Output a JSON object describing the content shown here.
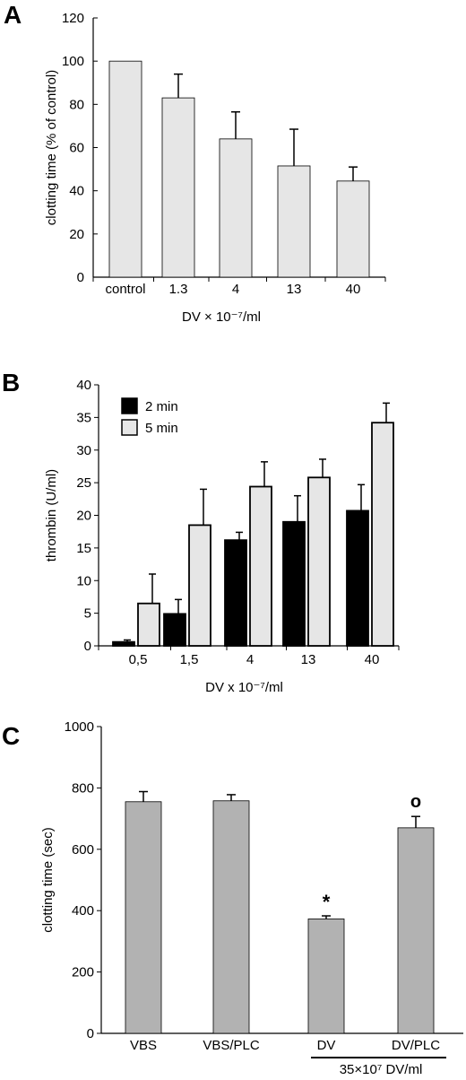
{
  "chart_data": [
    {
      "panel": "A",
      "type": "bar",
      "categories": [
        "control",
        "1.3",
        "4",
        "13",
        "40"
      ],
      "series": [
        {
          "values": [
            100,
            83,
            64,
            51.5,
            44.5
          ],
          "errors": [
            0,
            11,
            12.5,
            17,
            6.5
          ],
          "color": "#e6e6e6"
        }
      ],
      "xlabel": "DV × 10⁻⁷/ml",
      "ylabel": "clotting time (% of control)",
      "ylim": [
        0,
        120
      ],
      "yticks": [
        "0",
        "20",
        "40",
        "60",
        "80",
        "100",
        "120"
      ],
      "grid": false
    },
    {
      "panel": "B",
      "type": "bar",
      "categories": [
        "0,5",
        "1,5",
        "4",
        "13",
        "40"
      ],
      "series": [
        {
          "name": "2 min",
          "values": [
            0.6,
            4.9,
            16.2,
            19.0,
            20.7
          ],
          "errors": [
            0.3,
            2.2,
            1.2,
            4.0,
            4.0
          ],
          "color": "#000000"
        },
        {
          "name": "5 min",
          "values": [
            6.5,
            18.5,
            24.4,
            25.8,
            34.2
          ],
          "errors": [
            4.5,
            5.5,
            3.8,
            2.8,
            3.0
          ],
          "color": "#e6e6e6"
        }
      ],
      "xlabel": "DV x 10⁻⁷/ml",
      "ylabel": "thrombin (U/ml)",
      "ylim": [
        0,
        40
      ],
      "yticks": [
        "0",
        "5",
        "10",
        "15",
        "20",
        "25",
        "30",
        "35",
        "40"
      ],
      "legend": "top-left",
      "grid": false
    },
    {
      "panel": "C",
      "type": "bar",
      "categories": [
        "VBS",
        "VBS/PLC",
        "DV",
        "DV/PLC"
      ],
      "series": [
        {
          "values": [
            755,
            758,
            373,
            670
          ],
          "errors": [
            33,
            20,
            10,
            37
          ],
          "color": "#b2b2b2"
        }
      ],
      "annotations": [
        "",
        "",
        "*",
        "o"
      ],
      "bracket_label": "35×10⁷ DV/ml",
      "ylabel": "clotting time (sec)",
      "ylim": [
        0,
        1000
      ],
      "yticks": [
        "0",
        "200",
        "400",
        "600",
        "800",
        "1000"
      ],
      "grid": false
    }
  ]
}
